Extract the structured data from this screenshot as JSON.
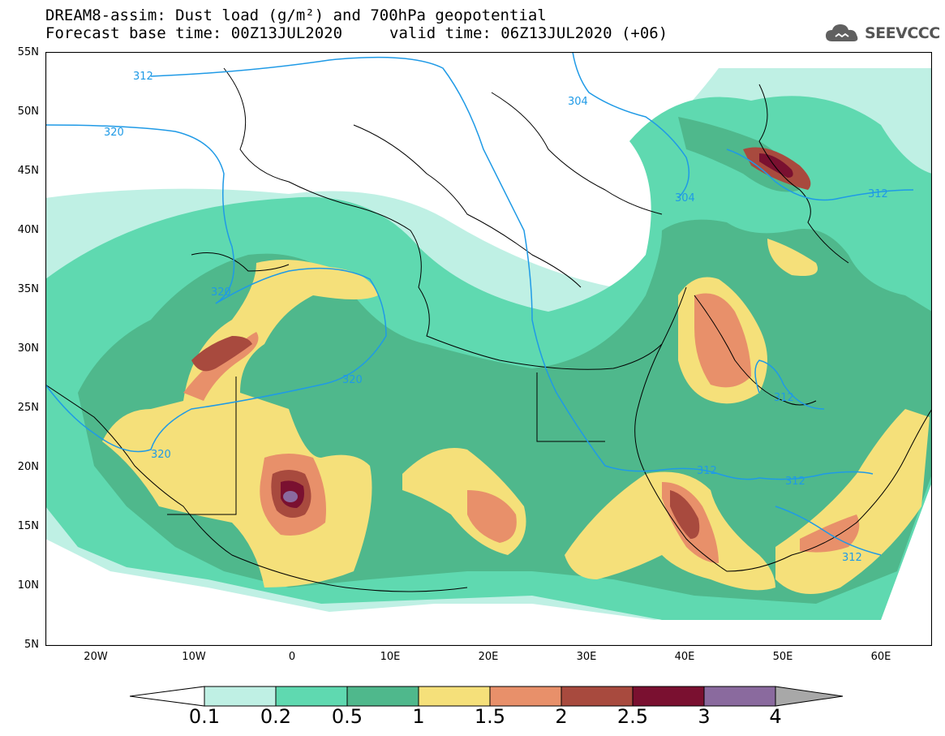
{
  "header": {
    "line1": "DREAM8-assim: Dust load (g/m²) and 700hPa geopotential",
    "line2a": "Forecast base time: 00Z13JUL2020",
    "line2b": "valid time: 06Z13JUL2020 (+06)",
    "logo_text": "SEEVCCC"
  },
  "map": {
    "lat_labels": [
      "55N",
      "50N",
      "45N",
      "40N",
      "35N",
      "30N",
      "25N",
      "20N",
      "15N",
      "10N",
      "5N"
    ],
    "lon_labels": [
      "20W",
      "10W",
      "0",
      "10E",
      "20E",
      "30E",
      "40E",
      "50E",
      "60E"
    ],
    "contour_labels": [
      "312",
      "304",
      "320",
      "304",
      "312",
      "320",
      "320",
      "320",
      "312",
      "312",
      "312",
      "312"
    ],
    "colors": {
      "c1": "#bff0e4",
      "c2": "#5fd9b0",
      "c3": "#4fb88c",
      "c4": "#f5e07a",
      "c5": "#e8906a",
      "c6": "#a84a3e",
      "c7": "#7a1030",
      "c8": "#8a6a9e",
      "over": "#a8a8a8",
      "contour": "#1f9ae6",
      "coast": "#000000"
    }
  },
  "colorbar": {
    "ticks": [
      "0.1",
      "0.2",
      "0.5",
      "1",
      "1.5",
      "2",
      "2.5",
      "3",
      "4"
    ]
  }
}
